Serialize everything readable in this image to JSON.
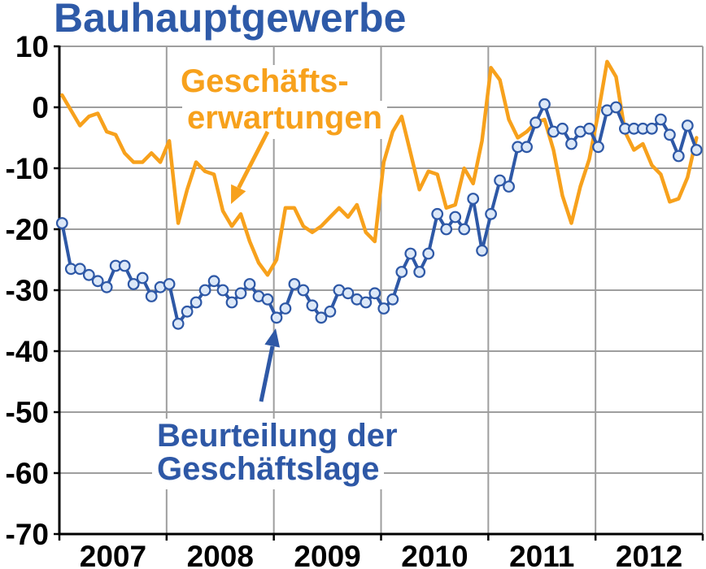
{
  "colors": {
    "title": "#2e5aa8",
    "grid": "#9e9e9e",
    "axis": "#000000"
  },
  "chart_data": {
    "type": "line",
    "title": "Bauhauptgewerbe",
    "ylim": [
      -70,
      10
    ],
    "yticks": [
      10,
      0,
      -10,
      -20,
      -30,
      -40,
      -50,
      -60,
      -70
    ],
    "xlim": [
      "2007-01",
      "2012-12"
    ],
    "xtick_labels": [
      "2007",
      "2008",
      "2009",
      "2010",
      "2011",
      "2012"
    ],
    "grid": true,
    "legend": "none",
    "x": [
      "2007-01",
      "2007-02",
      "2007-03",
      "2007-04",
      "2007-05",
      "2007-06",
      "2007-07",
      "2007-08",
      "2007-09",
      "2007-10",
      "2007-11",
      "2007-12",
      "2008-01",
      "2008-02",
      "2008-03",
      "2008-04",
      "2008-05",
      "2008-06",
      "2008-07",
      "2008-08",
      "2008-09",
      "2008-10",
      "2008-11",
      "2008-12",
      "2009-01",
      "2009-02",
      "2009-03",
      "2009-04",
      "2009-05",
      "2009-06",
      "2009-07",
      "2009-08",
      "2009-09",
      "2009-10",
      "2009-11",
      "2009-12",
      "2010-01",
      "2010-02",
      "2010-03",
      "2010-04",
      "2010-05",
      "2010-06",
      "2010-07",
      "2010-08",
      "2010-09",
      "2010-10",
      "2010-11",
      "2010-12",
      "2011-01",
      "2011-02",
      "2011-03",
      "2011-04",
      "2011-05",
      "2011-06",
      "2011-07",
      "2011-08",
      "2011-09",
      "2011-10",
      "2011-11",
      "2011-12",
      "2012-01",
      "2012-02",
      "2012-03",
      "2012-04",
      "2012-05",
      "2012-06",
      "2012-07",
      "2012-08",
      "2012-09",
      "2012-10",
      "2012-11",
      "2012-12"
    ],
    "series": [
      {
        "label": [
          "Geschäfts-",
          "erwartungen"
        ],
        "color": "#f7a11c",
        "markers": "none",
        "values": [
          2,
          -0.5,
          -3,
          -1.5,
          -1,
          -4,
          -4.5,
          -7.5,
          -9,
          -9,
          -7.5,
          -9,
          -5.5,
          -19,
          -13.5,
          -9,
          -10.5,
          -11,
          -17,
          -19.5,
          -17.5,
          -22,
          -25.5,
          -27.5,
          -25,
          -16.5,
          -16.5,
          -19.5,
          -20.5,
          -19.5,
          -18,
          -16.5,
          -18,
          -16,
          -20.5,
          -22,
          -9,
          -4,
          -1.5,
          -7.5,
          -13.5,
          -10.5,
          -11,
          -16.5,
          -16,
          -10,
          -12.5,
          -5.5,
          6.5,
          4.5,
          -2,
          -5,
          -4,
          -2.5,
          -2,
          -7,
          -14.5,
          -19,
          -13,
          -8.5,
          -1,
          7.5,
          5,
          -4,
          -7,
          -6,
          -9.5,
          -11,
          -15.5,
          -15,
          -11.5,
          -5
        ]
      },
      {
        "label": [
          "Beurteilung der",
          "Geschäftslage"
        ],
        "color": "#2e58a6",
        "markers": "circle",
        "marker_fill": "#dce8f8",
        "values": [
          -19,
          -26.5,
          -26.5,
          -27.5,
          -28.5,
          -29.5,
          -26,
          -26,
          -29,
          -28,
          -31,
          -29.5,
          -29,
          -35.5,
          -33.5,
          -32,
          -30,
          -28.5,
          -30,
          -32,
          -30.5,
          -29,
          -31,
          -31.5,
          -34.5,
          -33,
          -29,
          -30,
          -32.5,
          -34.5,
          -33.5,
          -30,
          -30.5,
          -31.5,
          -32,
          -30.5,
          -33,
          -31.5,
          -27,
          -24,
          -27,
          -24,
          -17.5,
          -20,
          -18,
          -20,
          -15,
          -23.5,
          -17.5,
          -12,
          -13,
          -6.5,
          -6.5,
          -2.5,
          0.5,
          -4,
          -3.5,
          -6,
          -4,
          -3.5,
          -6.5,
          -0.5,
          0,
          -3.5,
          -3.5,
          -3.5,
          -3.5,
          -2,
          -4.5,
          -8,
          -3,
          -7
        ]
      }
    ]
  }
}
